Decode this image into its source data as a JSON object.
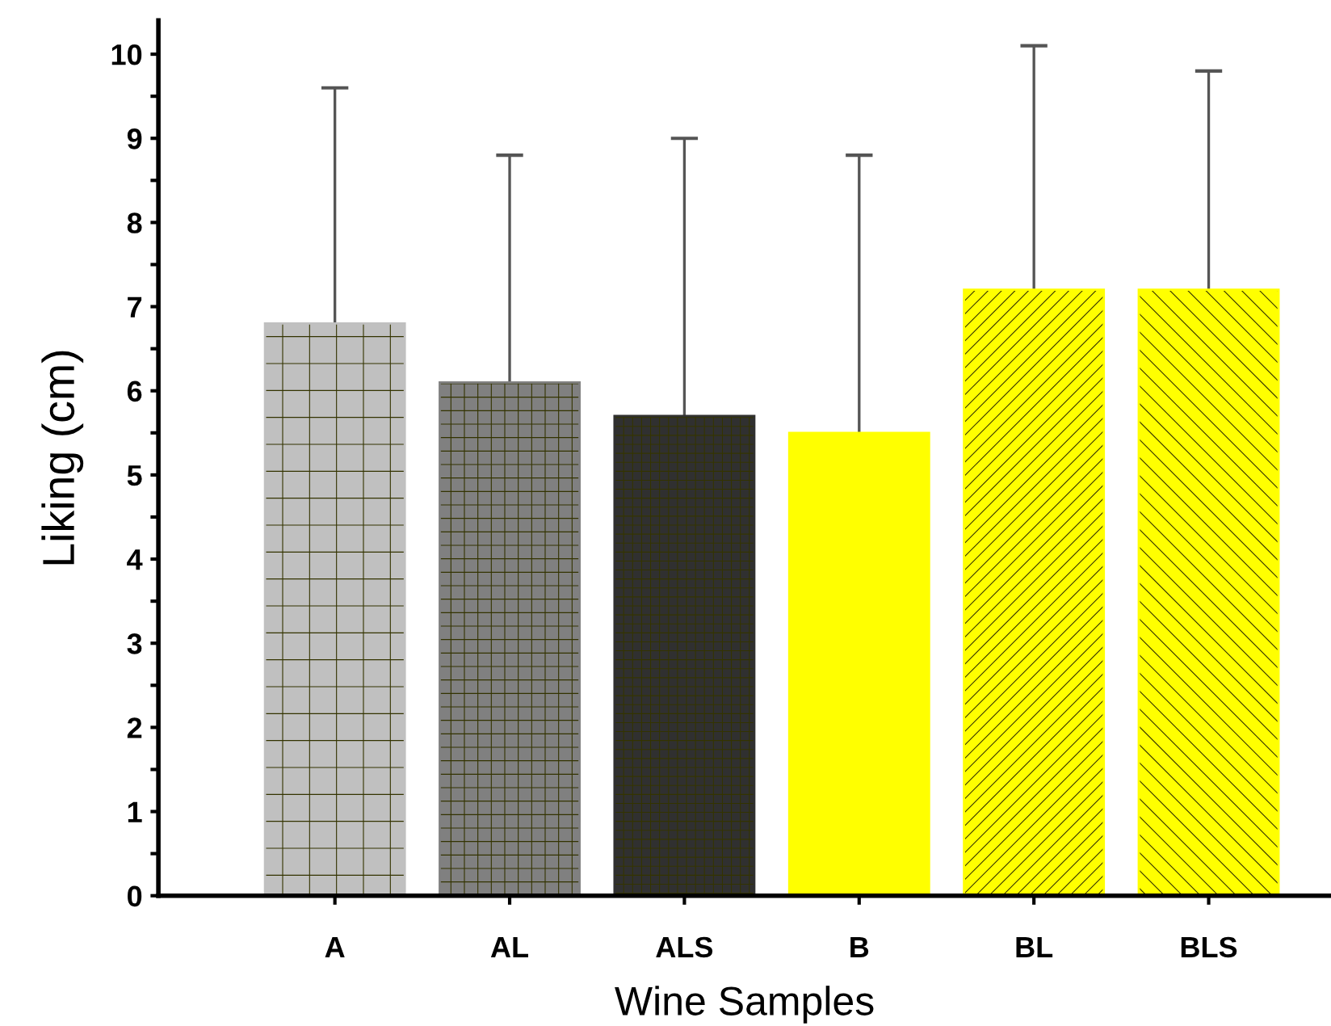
{
  "chart_data": {
    "type": "bar",
    "xlabel": "Wine Samples",
    "ylabel": "Liking (cm)",
    "categories": [
      "A",
      "AL",
      "ALS",
      "B",
      "BL",
      "BLS"
    ],
    "values": [
      6.8,
      6.1,
      5.7,
      5.5,
      7.2,
      7.2
    ],
    "errors": [
      2.8,
      2.7,
      3.3,
      3.3,
      2.9,
      2.6
    ],
    "colors": [
      "#c0c0c0",
      "#808080",
      "#303030",
      "#ffff00",
      "#ffff00",
      "#ffff00"
    ],
    "ylim": [
      0,
      10.4
    ],
    "yticks": [
      0,
      {
        "value": 0.5,
        "label": null
      },
      1,
      {
        "value": 1.5,
        "label": null
      },
      2,
      {
        "value": 2.5,
        "label": null
      },
      3,
      {
        "value": 3.5,
        "label": null
      },
      4,
      {
        "value": 4.5,
        "label": null
      },
      5,
      {
        "value": 5.5,
        "label": null
      },
      6,
      {
        "value": 6.5,
        "label": null
      },
      7,
      {
        "value": 7.5,
        "label": null
      },
      8,
      {
        "value": 8.5,
        "label": null
      },
      9,
      {
        "value": 9.5,
        "label": null
      },
      10
    ],
    "grid": false,
    "legend": false
  }
}
